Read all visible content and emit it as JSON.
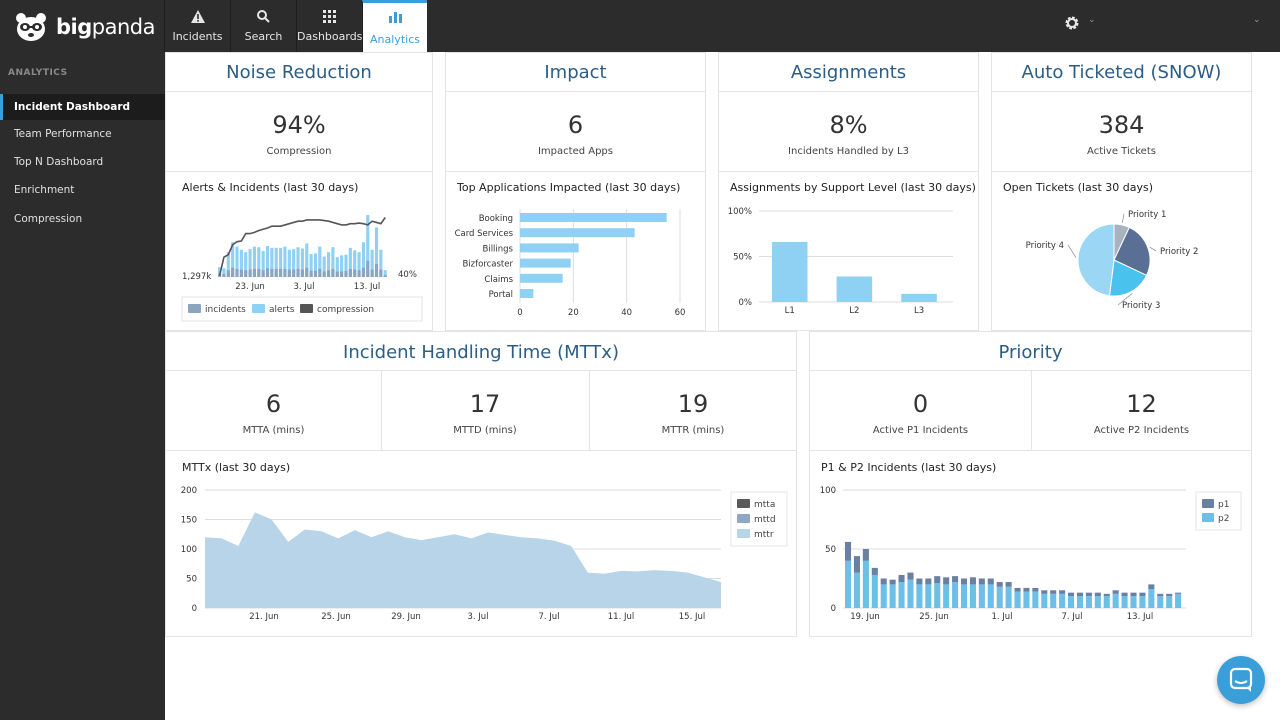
{
  "app": {
    "logo_bold": "big",
    "logo_rest": "panda"
  },
  "nav": {
    "tabs": [
      {
        "label": "Incidents",
        "icon": "warning-icon"
      },
      {
        "label": "Search",
        "icon": "search-icon"
      },
      {
        "label": "Dashboards",
        "icon": "grid-icon"
      },
      {
        "label": "Analytics",
        "icon": "bar-chart-icon",
        "active": true
      }
    ]
  },
  "sidebar": {
    "title": "ANALYTICS",
    "items": [
      {
        "label": "Incident Dashboard",
        "active": true
      },
      {
        "label": "Team Performance"
      },
      {
        "label": "Top N Dashboard"
      },
      {
        "label": "Enrichment"
      },
      {
        "label": "Compression"
      }
    ]
  },
  "colors": {
    "accent": "#3a9fd8",
    "title": "#2b5d86",
    "bar_light": "#8fd1f2",
    "bar_mid": "#8ba4c0",
    "dark": "#555555",
    "pie_grey": "#a9b3bd",
    "pie_navy": "#5a6f96",
    "pie_sky": "#49c2ee",
    "pie_pale": "#9bd7f5"
  },
  "noise": {
    "title": "Noise Reduction",
    "kpi": "94%",
    "kpi_label": "Compression",
    "chart_title": "Alerts & Incidents (last 30 days)"
  },
  "impact": {
    "title": "Impact",
    "kpi": "6",
    "kpi_label": "Impacted Apps",
    "chart_title": "Top Applications Impacted (last 30 days)"
  },
  "assign": {
    "title": "Assignments",
    "kpi": "8%",
    "kpi_label": "Incidents Handled by L3",
    "chart_title": "Assignments by Support Level (last 30 days)"
  },
  "snow": {
    "title": "Auto Ticketed (SNOW)",
    "kpi": "384",
    "kpi_label": "Active Tickets",
    "chart_title": "Open Tickets (last 30 days)"
  },
  "mttx": {
    "title": "Incident Handling Time (MTTx)",
    "kpis": [
      {
        "value": "6",
        "label": "MTTA (mins)"
      },
      {
        "value": "17",
        "label": "MTTD (mins)"
      },
      {
        "value": "19",
        "label": "MTTR (mins)"
      }
    ],
    "chart_title": "MTTx (last 30 days)"
  },
  "priority": {
    "title": "Priority",
    "kpis": [
      {
        "value": "0",
        "label": "Active P1 Incidents"
      },
      {
        "value": "12",
        "label": "Active P2 Incidents"
      }
    ],
    "chart_title": "P1 & P2 Incidents (last 30 days)"
  },
  "chart_data": [
    {
      "id": "alerts",
      "type": "bar",
      "title": "Alerts & Incidents (last 30 days)",
      "x_ticks": [
        "23. Jun",
        "3. Jul",
        "13. Jul"
      ],
      "left_label": "1,297k",
      "right_label": "40%",
      "legend": [
        "incidents",
        "alerts",
        "compression"
      ],
      "series": [
        {
          "name": "alerts",
          "values": [
            16,
            14,
            40,
            56,
            49,
            44,
            40,
            45,
            49,
            48,
            42,
            50,
            47,
            47,
            47,
            49,
            44,
            45,
            48,
            46,
            54,
            37,
            38,
            49,
            33,
            40,
            48,
            32,
            35,
            36,
            47,
            43,
            40,
            56,
            100,
            44,
            80,
            44,
            11
          ]
        },
        {
          "name": "incidents",
          "values": [
            4,
            5,
            11,
            15,
            13,
            12,
            11,
            12,
            13,
            13,
            11,
            14,
            13,
            13,
            13,
            13,
            12,
            12,
            13,
            12,
            15,
            10,
            10,
            13,
            9,
            11,
            13,
            9,
            9,
            10,
            13,
            12,
            11,
            15,
            26,
            12,
            21,
            12,
            3
          ]
        },
        {
          "name": "compression",
          "values": [
            2,
            32,
            36,
            52,
            57,
            58,
            70,
            70,
            72,
            75,
            77,
            79,
            82,
            82,
            82,
            84,
            86,
            88,
            90,
            90,
            92,
            92,
            92,
            92,
            91,
            90,
            88,
            86,
            84,
            84,
            86,
            86,
            87,
            86,
            84,
            90,
            88,
            86,
            96
          ]
        }
      ]
    },
    {
      "id": "top_apps",
      "type": "bar",
      "title": "Top Applications Impacted (last 30 days)",
      "categories": [
        "Booking",
        "Card Services",
        "Billings",
        "Bizforcaster",
        "Claims",
        "Portal"
      ],
      "values": [
        55,
        43,
        22,
        19,
        16,
        5
      ],
      "xlim": [
        0,
        60
      ],
      "x_ticks": [
        "0",
        "20",
        "40",
        "60"
      ]
    },
    {
      "id": "support_level",
      "type": "bar",
      "title": "Assignments by Support Level (last 30 days)",
      "categories": [
        "L1",
        "L2",
        "L3"
      ],
      "values": [
        66,
        28,
        9
      ],
      "ylim": [
        0,
        100
      ],
      "y_ticks": [
        "0%",
        "50%",
        "100%"
      ]
    },
    {
      "id": "tickets",
      "type": "pie",
      "title": "Open Tickets (last 30 days)",
      "categories": [
        "Priority 1",
        "Priority 2",
        "Priority 3",
        "Priority 4"
      ],
      "values": [
        7,
        25,
        20,
        48
      ]
    },
    {
      "id": "mttx",
      "type": "area",
      "title": "MTTx (last 30 days)",
      "x_ticks": [
        "21. Jun",
        "25. Jun",
        "29. Jun",
        "3. Jul",
        "7. Jul",
        "11. Jul",
        "15. Jul"
      ],
      "ylim": [
        0,
        200
      ],
      "y_ticks": [
        "0",
        "50",
        "100",
        "150",
        "200"
      ],
      "series": [
        {
          "name": "mttr",
          "values": [
            70,
            66,
            60,
            82,
            72,
            58,
            72,
            69,
            60,
            70,
            63,
            64,
            60,
            60,
            65,
            68,
            60,
            68,
            66,
            64,
            60,
            58,
            54,
            44,
            46,
            42,
            40,
            42,
            40,
            38,
            28,
            22
          ]
        },
        {
          "name": "mttd",
          "values": [
            103,
            100,
            85,
            145,
            130,
            98,
            118,
            112,
            105,
            118,
            100,
            110,
            102,
            98,
            106,
            110,
            100,
            110,
            106,
            104,
            100,
            98,
            86,
            58,
            56,
            55,
            55,
            54,
            50,
            48,
            40,
            36
          ]
        },
        {
          "name": "mtta",
          "values": [
            120,
            118,
            105,
            162,
            150,
            112,
            133,
            130,
            118,
            132,
            120,
            130,
            120,
            115,
            120,
            125,
            118,
            128,
            124,
            120,
            118,
            114,
            105,
            60,
            58,
            63,
            62,
            64,
            63,
            60,
            52,
            44
          ]
        }
      ]
    },
    {
      "id": "p1p2",
      "type": "bar",
      "title": "P1 & P2 Incidents (last 30 days)",
      "x_ticks": [
        "19. Jun",
        "25. Jun",
        "1. Jul",
        "7. Jul",
        "13. Jul"
      ],
      "ylim": [
        0,
        100
      ],
      "y_ticks": [
        "0",
        "50",
        "100"
      ],
      "legend": [
        "p1",
        "p2"
      ],
      "series": [
        {
          "name": "p2",
          "values": [
            40,
            30,
            40,
            28,
            20,
            20,
            22,
            24,
            20,
            20,
            21,
            20,
            22,
            20,
            20,
            20,
            20,
            18,
            18,
            14,
            14,
            14,
            12,
            12,
            12,
            10,
            10,
            10,
            10,
            10,
            12,
            10,
            10,
            10,
            16,
            10,
            10,
            12
          ]
        },
        {
          "name": "p1",
          "values": [
            16,
            14,
            10,
            6,
            5,
            4,
            6,
            6,
            5,
            5,
            6,
            6,
            5,
            5,
            6,
            5,
            5,
            4,
            4,
            3,
            3,
            3,
            3,
            3,
            3,
            3,
            3,
            3,
            3,
            2,
            3,
            3,
            3,
            3,
            4,
            2,
            2,
            1
          ]
        }
      ]
    }
  ]
}
